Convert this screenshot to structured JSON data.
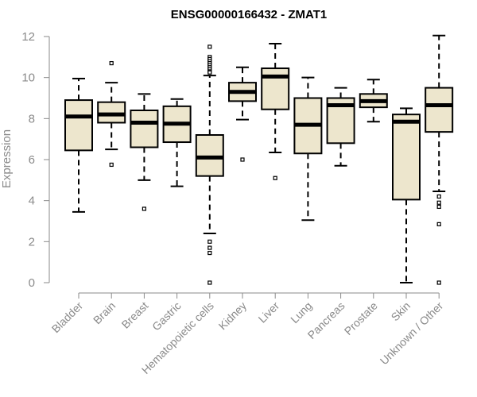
{
  "chart_data": {
    "type": "box",
    "title": "ENSG00000166432 - ZMAT1",
    "xlabel": "",
    "ylabel": "Expression",
    "ylim": [
      0,
      12
    ],
    "yticks": [
      0,
      2,
      4,
      6,
      8,
      10,
      12
    ],
    "box_fill": "#ede6cd",
    "line_color": "#000000",
    "axis_color": "#8a8a8a",
    "categories": [
      "Bladder",
      "Brain",
      "Breast",
      "Gastric",
      "Hematopoietic cells",
      "Kidney",
      "Liver",
      "Lung",
      "Pancreas",
      "Prostate",
      "Skin",
      "Unknown / Other"
    ],
    "boxes": [
      {
        "q1": 6.45,
        "median": 8.1,
        "q3": 8.9,
        "whisker_low": 3.45,
        "whisker_high": 9.95,
        "outliers": []
      },
      {
        "q1": 7.8,
        "median": 8.2,
        "q3": 8.8,
        "whisker_low": 6.5,
        "whisker_high": 9.75,
        "outliers": [
          10.7,
          5.75
        ]
      },
      {
        "q1": 6.6,
        "median": 7.8,
        "q3": 8.4,
        "whisker_low": 5.0,
        "whisker_high": 9.2,
        "outliers": [
          3.6
        ]
      },
      {
        "q1": 6.85,
        "median": 7.75,
        "q3": 8.6,
        "whisker_low": 4.7,
        "whisker_high": 8.95,
        "outliers": []
      },
      {
        "q1": 5.2,
        "median": 6.1,
        "q3": 7.2,
        "whisker_low": 2.4,
        "whisker_high": 10.1,
        "outliers": [
          11.5,
          11.0,
          10.9,
          10.8,
          10.7,
          10.6,
          10.5,
          10.4,
          10.3,
          10.25,
          2.0,
          1.7,
          1.45,
          0.0
        ]
      },
      {
        "q1": 8.85,
        "median": 9.3,
        "q3": 9.75,
        "whisker_low": 7.95,
        "whisker_high": 10.5,
        "outliers": [
          6.0
        ]
      },
      {
        "q1": 8.45,
        "median": 10.05,
        "q3": 10.45,
        "whisker_low": 6.35,
        "whisker_high": 11.65,
        "outliers": [
          5.1
        ]
      },
      {
        "q1": 6.3,
        "median": 7.7,
        "q3": 9.0,
        "whisker_low": 3.05,
        "whisker_high": 10.0,
        "outliers": []
      },
      {
        "q1": 6.8,
        "median": 8.65,
        "q3": 9.0,
        "whisker_low": 5.7,
        "whisker_high": 9.5,
        "outliers": []
      },
      {
        "q1": 8.55,
        "median": 8.85,
        "q3": 9.2,
        "whisker_low": 7.85,
        "whisker_high": 9.9,
        "outliers": []
      },
      {
        "q1": 4.05,
        "median": 7.85,
        "q3": 8.2,
        "whisker_low": 0.0,
        "whisker_high": 8.5,
        "outliers": []
      },
      {
        "q1": 7.35,
        "median": 8.65,
        "q3": 9.5,
        "whisker_low": 4.45,
        "whisker_high": 12.05,
        "outliers": [
          4.2,
          3.9,
          3.7,
          2.85,
          0.0
        ]
      }
    ]
  }
}
